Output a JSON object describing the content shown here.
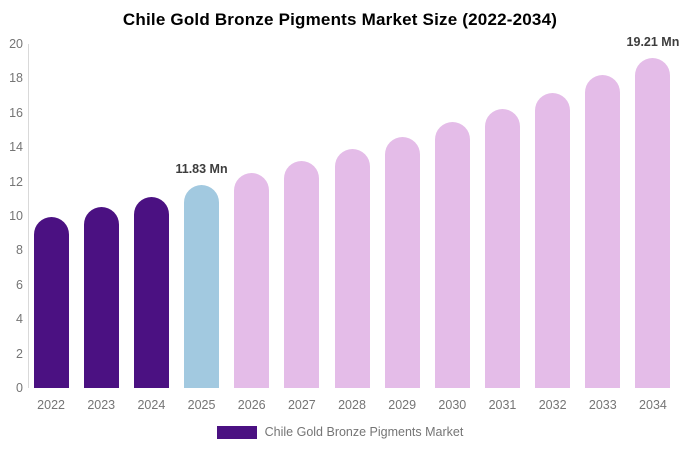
{
  "title": "Chile Gold Bronze Pigments Market Size (2022-2034)",
  "legend": {
    "items": [
      {
        "label": "Chile Gold Bronze Pigments Market",
        "color": "#4B1182"
      }
    ]
  },
  "colors": {
    "historical_bar": "#4B1182",
    "highlight_bar": "#A2C9E0",
    "forecast_bar": "#E4BCE8",
    "axis_line": "#d9d9d9",
    "tick_text": "#757575",
    "annotation_text": "#3d3d3d",
    "title_text": "#000000",
    "background": "#ffffff"
  },
  "chart_data": {
    "type": "bar",
    "title": "Chile Gold Bronze Pigments Market Size (2022-2034)",
    "unit": "Mn",
    "categories": [
      "2022",
      "2023",
      "2024",
      "2025",
      "2026",
      "2027",
      "2028",
      "2029",
      "2030",
      "2031",
      "2032",
      "2033",
      "2034"
    ],
    "values": [
      9.95,
      10.5,
      11.12,
      11.83,
      12.49,
      13.18,
      13.9,
      14.6,
      15.45,
      16.25,
      17.15,
      18.2,
      19.21
    ],
    "bar_colors": [
      "#4B1182",
      "#4B1182",
      "#4B1182",
      "#A2C9E0",
      "#E4BCE8",
      "#E4BCE8",
      "#E4BCE8",
      "#E4BCE8",
      "#E4BCE8",
      "#E4BCE8",
      "#E4BCE8",
      "#E4BCE8",
      "#E4BCE8"
    ],
    "value_labels": [
      {
        "category": "2025",
        "text": "11.83 Mn"
      },
      {
        "category": "2034",
        "text": "19.21 Mn"
      }
    ],
    "xlabel": "",
    "ylabel": "",
    "ylim": [
      0,
      20
    ],
    "yticks": [
      0,
      2,
      4,
      6,
      8,
      10,
      12,
      14,
      16,
      18,
      20
    ],
    "grid": false,
    "legend_position": "bottom"
  }
}
